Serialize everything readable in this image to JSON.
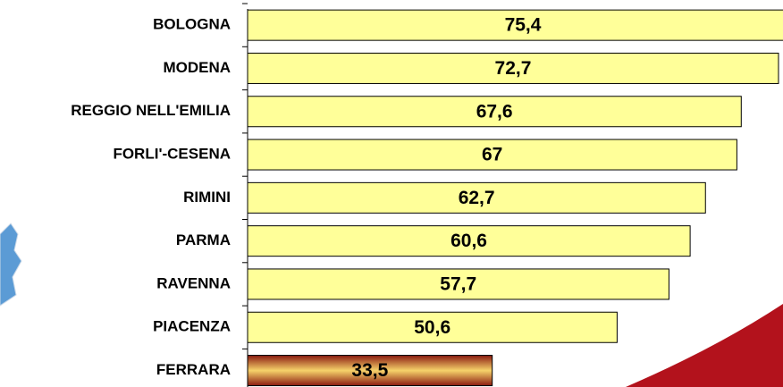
{
  "chart_data": {
    "type": "hbar",
    "categories": [
      "BOLOGNA",
      "MODENA",
      "REGGIO NELL'EMILIA",
      "FORLI'-CESENA",
      "RIMINI",
      "PARMA",
      "RAVENNA",
      "PIACENZA",
      "FERRARA"
    ],
    "values": [
      75.4,
      72.7,
      67.6,
      67,
      62.7,
      60.6,
      57.7,
      50.6,
      33.5
    ],
    "value_labels": [
      "75,4",
      "72,7",
      "67,6",
      "67",
      "62,7",
      "60,6",
      "57,7",
      "50,6",
      "33,5"
    ],
    "colors": [
      "#ffff99",
      "#ffff99",
      "#ffff99",
      "#ffff99",
      "#ffff99",
      "#ffff99",
      "#ffff99",
      "#ffff99",
      "#c8502a"
    ]
  }
}
